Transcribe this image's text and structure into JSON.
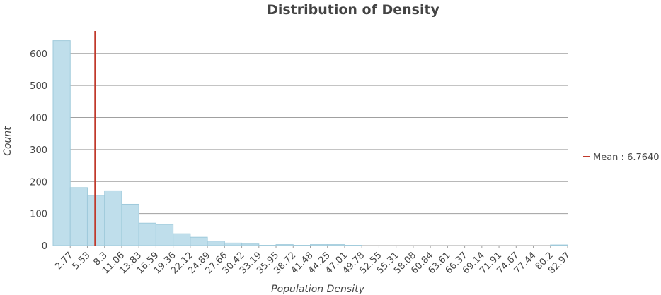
{
  "chart_data": {
    "type": "bar",
    "title": "Distribution of Density",
    "xlabel": "Population Density",
    "ylabel": "Count",
    "ylim": [
      0,
      670
    ],
    "yticks": [
      0,
      100,
      200,
      300,
      400,
      500,
      600
    ],
    "grid": true,
    "legend_position": "right",
    "bar_color": "#bfdeeb",
    "mean_color": "#c0392b",
    "bin_start": 0,
    "bin_width": 2.765,
    "tick_labels": [
      "2.77",
      "5.53",
      "8.3",
      "11.06",
      "13.83",
      "16.59",
      "19.36",
      "22.12",
      "24.89",
      "27.66",
      "30.42",
      "33.19",
      "35.95",
      "38.72",
      "41.48",
      "44.25",
      "47.01",
      "49.78",
      "52.55",
      "55.31",
      "58.08",
      "60.84",
      "63.61",
      "66.37",
      "69.14",
      "71.91",
      "74.67",
      "77.44",
      "80.2",
      "82.97"
    ],
    "values": [
      640,
      181,
      157,
      171,
      129,
      70,
      66,
      37,
      26,
      14,
      8,
      5,
      1,
      3,
      1,
      3,
      3,
      1,
      0,
      0,
      0,
      0,
      0,
      0,
      0,
      0,
      0,
      0,
      0,
      2
    ],
    "mean": {
      "label": "Mean : 6.7640",
      "value": 6.764
    }
  }
}
